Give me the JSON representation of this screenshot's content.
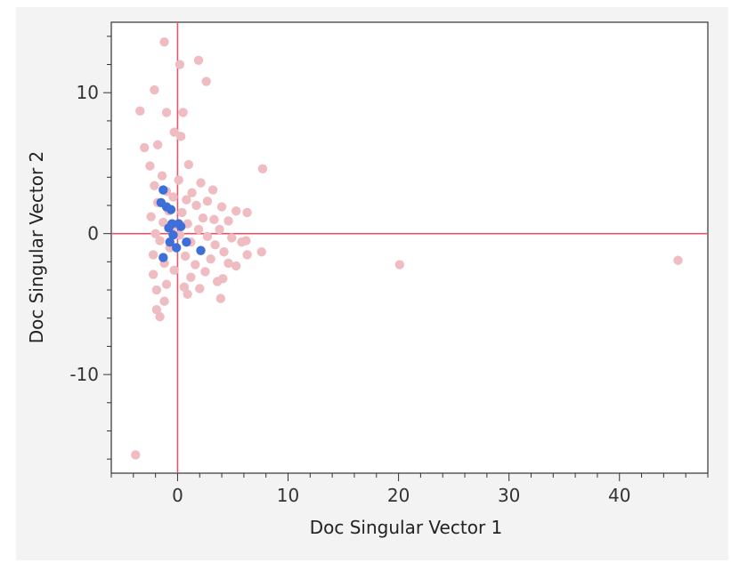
{
  "chart_data": {
    "type": "scatter",
    "xlabel": "Doc Singular Vector 1",
    "ylabel": "Doc Singular Vector 2",
    "xlim": [
      -6,
      48
    ],
    "ylim": [
      -17,
      15
    ],
    "x_ticks": [
      0,
      10,
      20,
      30,
      40
    ],
    "y_ticks": [
      -10,
      0,
      10
    ],
    "x_tick_labels": [
      "0",
      "10",
      "20",
      "30",
      "40"
    ],
    "y_tick_labels": [
      "-10",
      "0",
      "10"
    ],
    "x_minor_step": 2,
    "y_minor_step": 2,
    "reference_lines": {
      "x": 0,
      "y": 0
    },
    "reference_line_color": "#e0566b",
    "grid": false,
    "legend": "none",
    "series": [
      {
        "color": "#efbcc2",
        "points": [
          [
            -1.2,
            13.6
          ],
          [
            0.2,
            12.0
          ],
          [
            1.9,
            12.3
          ],
          [
            2.6,
            10.8
          ],
          [
            -2.1,
            10.2
          ],
          [
            -3.4,
            8.7
          ],
          [
            -1.0,
            8.6
          ],
          [
            0.5,
            8.6
          ],
          [
            -0.3,
            7.2
          ],
          [
            0.3,
            6.9
          ],
          [
            -3.0,
            6.1
          ],
          [
            -1.8,
            6.3
          ],
          [
            7.7,
            4.6
          ],
          [
            -2.5,
            4.8
          ],
          [
            1.0,
            4.9
          ],
          [
            -1.4,
            4.1
          ],
          [
            0.1,
            3.8
          ],
          [
            2.1,
            3.6
          ],
          [
            -2.1,
            3.4
          ],
          [
            3.2,
            3.1
          ],
          [
            -1.0,
            3.0
          ],
          [
            1.3,
            2.9
          ],
          [
            -0.4,
            2.6
          ],
          [
            0.8,
            2.4
          ],
          [
            2.7,
            2.3
          ],
          [
            -1.8,
            2.2
          ],
          [
            1.7,
            2.0
          ],
          [
            4.0,
            1.9
          ],
          [
            -0.8,
            1.6
          ],
          [
            0.4,
            1.5
          ],
          [
            5.3,
            1.6
          ],
          [
            6.3,
            1.5
          ],
          [
            -2.4,
            1.2
          ],
          [
            2.3,
            1.1
          ],
          [
            3.3,
            1.0
          ],
          [
            -1.3,
            0.8
          ],
          [
            0.9,
            0.7
          ],
          [
            4.6,
            0.9
          ],
          [
            -0.5,
            0.4
          ],
          [
            1.9,
            0.3
          ],
          [
            3.8,
            0.3
          ],
          [
            -2.0,
            0.0
          ],
          [
            0.2,
            -0.1
          ],
          [
            2.7,
            -0.2
          ],
          [
            4.9,
            -0.3
          ],
          [
            -1.6,
            -0.5
          ],
          [
            1.2,
            -0.6
          ],
          [
            3.4,
            -0.8
          ],
          [
            5.8,
            -0.6
          ],
          [
            6.2,
            -0.5
          ],
          [
            -0.7,
            -1.0
          ],
          [
            2.1,
            -1.2
          ],
          [
            4.2,
            -1.3
          ],
          [
            7.6,
            -1.3
          ],
          [
            -2.2,
            -1.5
          ],
          [
            0.7,
            -1.6
          ],
          [
            3.0,
            -1.8
          ],
          [
            6.3,
            -1.5
          ],
          [
            -1.2,
            -2.1
          ],
          [
            1.6,
            -2.2
          ],
          [
            4.6,
            -2.1
          ],
          [
            5.3,
            -2.3
          ],
          [
            -0.3,
            -2.6
          ],
          [
            2.5,
            -2.7
          ],
          [
            -2.2,
            -2.9
          ],
          [
            1.2,
            -3.1
          ],
          [
            3.6,
            -3.4
          ],
          [
            -1.0,
            -3.6
          ],
          [
            0.6,
            -3.8
          ],
          [
            2.0,
            -3.9
          ],
          [
            4.1,
            -3.2
          ],
          [
            -1.9,
            -4.0
          ],
          [
            0.9,
            -4.3
          ],
          [
            -1.2,
            -4.8
          ],
          [
            3.9,
            -4.6
          ],
          [
            -1.9,
            -5.4
          ],
          [
            -1.6,
            -5.9
          ],
          [
            20.1,
            -2.2
          ],
          [
            45.3,
            -1.9
          ],
          [
            -3.8,
            -15.7
          ]
        ]
      },
      {
        "color": "#3e6fd8",
        "points": [
          [
            -1.3,
            3.1
          ],
          [
            -1.5,
            2.2
          ],
          [
            -1.0,
            1.9
          ],
          [
            -0.6,
            1.7
          ],
          [
            -0.5,
            0.7
          ],
          [
            0.1,
            0.7
          ],
          [
            0.3,
            0.5
          ],
          [
            -0.8,
            0.4
          ],
          [
            -0.4,
            -0.1
          ],
          [
            -0.7,
            -0.6
          ],
          [
            -0.1,
            -1.0
          ],
          [
            0.8,
            -0.6
          ],
          [
            2.1,
            -1.2
          ],
          [
            -1.3,
            -1.7
          ]
        ]
      }
    ]
  }
}
